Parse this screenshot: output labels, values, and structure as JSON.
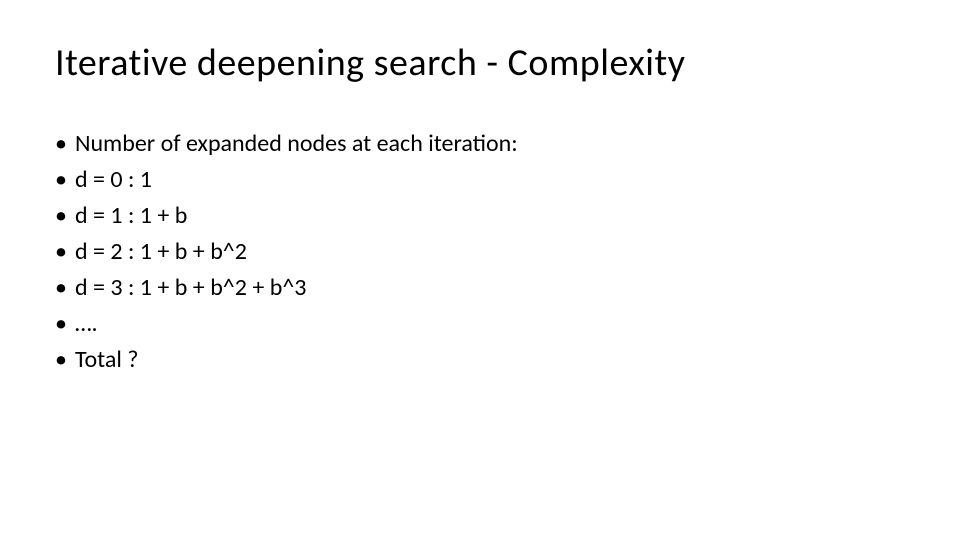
{
  "slide": {
    "title": "Iterative deepening search - Complexity",
    "title_fontsize": 38,
    "title_color": "#000000",
    "background_color": "#ffffff",
    "body_fontsize": 24,
    "body_color": "#000000",
    "bullet_marker": "•",
    "bullets": [
      "Number of expanded nodes at each iteration:",
      "d = 0 : 1",
      "d = 1 : 1 + b",
      "d = 2 : 1 + b + b^2",
      "d = 3 : 1 + b + b^2 + b^3",
      " ….",
      "Total ?"
    ]
  }
}
